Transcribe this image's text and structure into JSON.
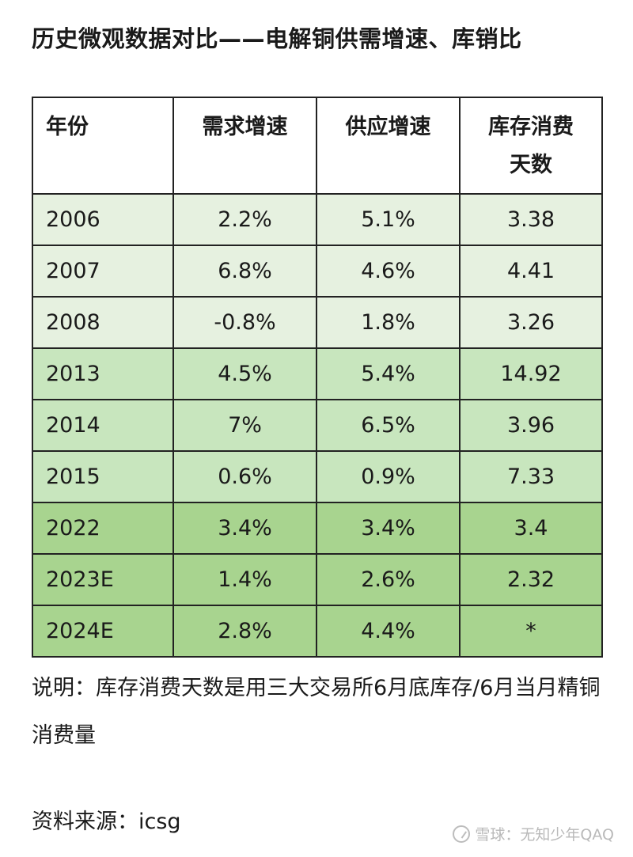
{
  "title": "历史微观数据对比——电解铜供需增速、库销比",
  "table": {
    "headers": [
      "年份",
      "需求增速",
      "供应增速",
      "库存消费天数"
    ],
    "rows": [
      {
        "year": "2006",
        "demand": "2.2%",
        "supply": "5.1%",
        "days": "3.38",
        "group": 1
      },
      {
        "year": "2007",
        "demand": "6.8%",
        "supply": "4.6%",
        "days": "4.41",
        "group": 1
      },
      {
        "year": "2008",
        "demand": "-0.8%",
        "supply": "1.8%",
        "days": "3.26",
        "group": 1
      },
      {
        "year": "2013",
        "demand": "4.5%",
        "supply": "5.4%",
        "days": "14.92",
        "group": 2
      },
      {
        "year": "2014",
        "demand": "7%",
        "supply": "6.5%",
        "days": "3.96",
        "group": 2
      },
      {
        "year": "2015",
        "demand": "0.6%",
        "supply": "0.9%",
        "days": "7.33",
        "group": 2
      },
      {
        "year": "2022",
        "demand": "3.4%",
        "supply": "3.4%",
        "days": "3.4",
        "group": 3
      },
      {
        "year": "2023E",
        "demand": "1.4%",
        "supply": "2.6%",
        "days": "2.32",
        "group": 3
      },
      {
        "year": "2024E",
        "demand": "2.8%",
        "supply": "4.4%",
        "days": "*",
        "group": 3
      }
    ]
  },
  "note": "说明：库存消费天数是用三大交易所6月底库存/6月当月精铜消费量",
  "source": "资料来源：icsg",
  "watermark": "雪球：无知少年QAQ",
  "colors": {
    "group1": "#e6f1e0",
    "group2": "#c8e6be",
    "group3": "#a8d48f",
    "border": "#222222"
  }
}
